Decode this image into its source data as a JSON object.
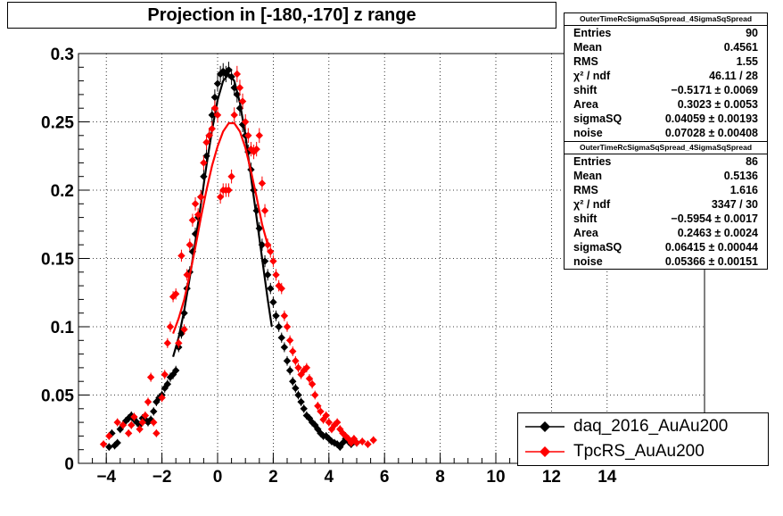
{
  "chart_data": {
    "type": "scatter",
    "title": "Projection in [-180,-170] z range",
    "xlim": [
      -5,
      17.5
    ],
    "ylim": [
      0,
      0.3
    ],
    "x_ticks": [
      -4,
      -2,
      0,
      2,
      4,
      6,
      8,
      10,
      12,
      14
    ],
    "x_tick_labels": [
      "−4",
      "−2",
      "0",
      "2",
      "4",
      "6",
      "8",
      "10",
      "12",
      "14"
    ],
    "y_ticks": [
      0,
      0.05,
      0.1,
      0.15,
      0.2,
      0.25,
      0.3
    ],
    "y_tick_labels": [
      "0",
      "0.05",
      "0.1",
      "0.15",
      "0.2",
      "0.25",
      "0.3"
    ],
    "grid": true,
    "legend_position": "bottom-right",
    "series": [
      {
        "name": "daq_2016_AuAu200",
        "color": "#000000",
        "points": [
          [
            -3.9,
            0.012
          ],
          [
            -3.8,
            0.022
          ],
          [
            -3.7,
            0.013
          ],
          [
            -3.6,
            0.015
          ],
          [
            -3.5,
            0.025
          ],
          [
            -3.4,
            0.028
          ],
          [
            -3.3,
            0.031
          ],
          [
            -3.2,
            0.033
          ],
          [
            -3.1,
            0.035
          ],
          [
            -3.0,
            0.032
          ],
          [
            -2.9,
            0.03
          ],
          [
            -2.8,
            0.028
          ],
          [
            -2.7,
            0.033
          ],
          [
            -2.6,
            0.032
          ],
          [
            -2.5,
            0.03
          ],
          [
            -2.4,
            0.032
          ],
          [
            -2.3,
            0.038
          ],
          [
            -2.2,
            0.045
          ],
          [
            -2.1,
            0.048
          ],
          [
            -2.0,
            0.05
          ],
          [
            -1.9,
            0.055
          ],
          [
            -1.8,
            0.058
          ],
          [
            -1.7,
            0.063
          ],
          [
            -1.6,
            0.065
          ],
          [
            -1.5,
            0.068
          ],
          [
            -1.4,
            0.085
          ],
          [
            -1.3,
            0.095
          ],
          [
            -1.2,
            0.11
          ],
          [
            -1.1,
            0.128
          ],
          [
            -1.0,
            0.14
          ],
          [
            -0.9,
            0.155
          ],
          [
            -0.8,
            0.168
          ],
          [
            -0.7,
            0.18
          ],
          [
            -0.6,
            0.195
          ],
          [
            -0.5,
            0.21
          ],
          [
            -0.4,
            0.225
          ],
          [
            -0.3,
            0.24
          ],
          [
            -0.2,
            0.255
          ],
          [
            -0.1,
            0.268
          ],
          [
            0.0,
            0.278
          ],
          [
            0.1,
            0.285
          ],
          [
            0.2,
            0.287
          ],
          [
            0.3,
            0.285
          ],
          [
            0.4,
            0.288
          ],
          [
            0.5,
            0.283
          ],
          [
            0.6,
            0.275
          ],
          [
            0.7,
            0.27
          ],
          [
            0.8,
            0.26
          ],
          [
            0.9,
            0.248
          ],
          [
            1.0,
            0.24
          ],
          [
            1.1,
            0.228
          ],
          [
            1.2,
            0.215
          ],
          [
            1.3,
            0.2
          ],
          [
            1.4,
            0.185
          ],
          [
            1.5,
            0.172
          ],
          [
            1.6,
            0.16
          ],
          [
            1.7,
            0.148
          ],
          [
            1.8,
            0.138
          ],
          [
            1.9,
            0.128
          ],
          [
            2.0,
            0.118
          ],
          [
            2.1,
            0.108
          ],
          [
            2.2,
            0.1
          ],
          [
            2.3,
            0.092
          ],
          [
            2.4,
            0.085
          ],
          [
            2.5,
            0.075
          ],
          [
            2.6,
            0.068
          ],
          [
            2.7,
            0.06
          ],
          [
            2.8,
            0.055
          ],
          [
            2.9,
            0.05
          ],
          [
            3.0,
            0.045
          ],
          [
            3.1,
            0.04
          ],
          [
            3.2,
            0.035
          ],
          [
            3.3,
            0.033
          ],
          [
            3.4,
            0.03
          ],
          [
            3.5,
            0.028
          ],
          [
            3.6,
            0.025
          ],
          [
            3.7,
            0.022
          ],
          [
            3.8,
            0.02
          ],
          [
            3.9,
            0.02
          ],
          [
            4.0,
            0.018
          ],
          [
            4.1,
            0.016
          ],
          [
            4.2,
            0.015
          ],
          [
            4.3,
            0.014
          ],
          [
            4.4,
            0.012
          ],
          [
            4.5,
            0.015
          ],
          [
            4.6,
            0.018
          ],
          [
            4.7,
            0.016
          ],
          [
            4.8,
            0.014
          ],
          [
            4.9,
            0.016
          ],
          [
            5.0,
            0.015
          ]
        ],
        "fit": [
          [
            -1.6,
            0.078
          ],
          [
            -1.4,
            0.092
          ],
          [
            -1.2,
            0.112
          ],
          [
            -1.0,
            0.136
          ],
          [
            -0.8,
            0.162
          ],
          [
            -0.6,
            0.19
          ],
          [
            -0.4,
            0.218
          ],
          [
            -0.2,
            0.244
          ],
          [
            0.0,
            0.266
          ],
          [
            0.2,
            0.28
          ],
          [
            0.4,
            0.285
          ],
          [
            0.6,
            0.28
          ],
          [
            0.8,
            0.264
          ],
          [
            1.0,
            0.24
          ],
          [
            1.2,
            0.21
          ],
          [
            1.4,
            0.18
          ],
          [
            1.6,
            0.15
          ],
          [
            1.8,
            0.12
          ],
          [
            1.95,
            0.1
          ]
        ]
      },
      {
        "name": "TpcRS_AuAu200",
        "color": "#ff0000",
        "points": [
          [
            -4.1,
            0.014
          ],
          [
            -3.9,
            0.02
          ],
          [
            -3.6,
            0.03
          ],
          [
            -3.4,
            0.028
          ],
          [
            -3.2,
            0.022
          ],
          [
            -3.1,
            0.028
          ],
          [
            -3.0,
            0.034
          ],
          [
            -2.8,
            0.025
          ],
          [
            -2.7,
            0.03
          ],
          [
            -2.6,
            0.035
          ],
          [
            -2.5,
            0.045
          ],
          [
            -2.4,
            0.063
          ],
          [
            -2.3,
            0.03
          ],
          [
            -2.2,
            0.022
          ],
          [
            -2.0,
            0.048
          ],
          [
            -1.9,
            0.065
          ],
          [
            -1.8,
            0.088
          ],
          [
            -1.7,
            0.1
          ],
          [
            -1.6,
            0.122
          ],
          [
            -1.5,
            0.124
          ],
          [
            -1.4,
            0.088
          ],
          [
            -1.3,
            0.152
          ],
          [
            -1.2,
            0.098
          ],
          [
            -1.1,
            0.138
          ],
          [
            -1.0,
            0.16
          ],
          [
            -0.9,
            0.178
          ],
          [
            -0.8,
            0.19
          ],
          [
            -0.7,
            0.182
          ],
          [
            -0.6,
            0.195
          ],
          [
            -0.5,
            0.22
          ],
          [
            -0.4,
            0.235
          ],
          [
            -0.3,
            0.24
          ],
          [
            -0.2,
            0.245
          ],
          [
            -0.1,
            0.26
          ],
          [
            0.0,
            0.255
          ],
          [
            0.1,
            0.195
          ],
          [
            0.2,
            0.2
          ],
          [
            0.3,
            0.2
          ],
          [
            0.4,
            0.2
          ],
          [
            0.5,
            0.21
          ],
          [
            0.6,
            0.255
          ],
          [
            0.7,
            0.285
          ],
          [
            0.8,
            0.275
          ],
          [
            0.9,
            0.265
          ],
          [
            1.0,
            0.25
          ],
          [
            1.1,
            0.24
          ],
          [
            1.2,
            0.23
          ],
          [
            1.3,
            0.228
          ],
          [
            1.4,
            0.23
          ],
          [
            1.5,
            0.24
          ],
          [
            1.6,
            0.205
          ],
          [
            1.7,
            0.185
          ],
          [
            1.8,
            0.16
          ],
          [
            1.9,
            0.155
          ],
          [
            2.0,
            0.148
          ],
          [
            2.1,
            0.138
          ],
          [
            2.2,
            0.13
          ],
          [
            2.3,
            0.128
          ],
          [
            2.4,
            0.108
          ],
          [
            2.5,
            0.1
          ],
          [
            2.6,
            0.09
          ],
          [
            2.7,
            0.082
          ],
          [
            2.8,
            0.075
          ],
          [
            2.9,
            0.07
          ],
          [
            3.0,
            0.065
          ],
          [
            3.1,
            0.068
          ],
          [
            3.2,
            0.07
          ],
          [
            3.3,
            0.062
          ],
          [
            3.4,
            0.058
          ],
          [
            3.5,
            0.05
          ],
          [
            3.6,
            0.042
          ],
          [
            3.7,
            0.038
          ],
          [
            3.8,
            0.032
          ],
          [
            3.9,
            0.035
          ],
          [
            4.0,
            0.03
          ],
          [
            4.1,
            0.025
          ],
          [
            4.2,
            0.028
          ],
          [
            4.3,
            0.03
          ],
          [
            4.4,
            0.025
          ],
          [
            4.5,
            0.022
          ],
          [
            4.6,
            0.02
          ],
          [
            4.7,
            0.018
          ],
          [
            4.8,
            0.015
          ],
          [
            4.9,
            0.018
          ],
          [
            5.0,
            0.015
          ],
          [
            5.2,
            0.016
          ],
          [
            5.4,
            0.014
          ],
          [
            5.6,
            0.017
          ]
        ],
        "fit": [
          [
            -1.6,
            0.095
          ],
          [
            -1.4,
            0.106
          ],
          [
            -1.2,
            0.12
          ],
          [
            -1.0,
            0.138
          ],
          [
            -0.8,
            0.158
          ],
          [
            -0.6,
            0.18
          ],
          [
            -0.4,
            0.2
          ],
          [
            -0.2,
            0.218
          ],
          [
            0.0,
            0.232
          ],
          [
            0.2,
            0.243
          ],
          [
            0.4,
            0.249
          ],
          [
            0.6,
            0.249
          ],
          [
            0.8,
            0.243
          ],
          [
            1.0,
            0.231
          ],
          [
            1.2,
            0.214
          ],
          [
            1.4,
            0.195
          ],
          [
            1.6,
            0.175
          ],
          [
            1.8,
            0.16
          ]
        ]
      }
    ]
  },
  "title": "Projection in [-180,-170] z range",
  "stats_boxes": [
    {
      "header": "OuterTimeRcSigmaSqSpread_4SigmaSqSpread",
      "rows": [
        {
          "label": "Entries",
          "value": "90"
        },
        {
          "label": "Mean",
          "value": "0.4561"
        },
        {
          "label": "RMS",
          "value": "1.55"
        },
        {
          "label": "χ² / ndf",
          "value": "46.11 / 28"
        },
        {
          "label": "shift",
          "value": "−0.5171 ± 0.0069"
        },
        {
          "label": "Area",
          "value": "0.3023 ± 0.0053"
        },
        {
          "label": "sigmaSQ",
          "value": "0.04059 ± 0.00193"
        },
        {
          "label": "noise",
          "value": "0.07028 ± 0.00408"
        }
      ]
    },
    {
      "header": "OuterTimeRcSigmaSqSpread_4SigmaSqSpread",
      "rows": [
        {
          "label": "Entries",
          "value": "86"
        },
        {
          "label": "Mean",
          "value": "0.5136"
        },
        {
          "label": "RMS",
          "value": "1.616"
        },
        {
          "label": "χ² / ndf",
          "value": "3347 / 30"
        },
        {
          "label": "shift",
          "value": "−0.5954 ± 0.0017"
        },
        {
          "label": "Area",
          "value": "0.2463 ± 0.0024"
        },
        {
          "label": "sigmaSQ",
          "value": "0.06415 ± 0.00044"
        },
        {
          "label": "noise",
          "value": "0.05366 ± 0.00151"
        }
      ]
    }
  ],
  "legend": {
    "items": [
      "daq_2016_AuAu200",
      "TpcRS_AuAu200"
    ]
  }
}
